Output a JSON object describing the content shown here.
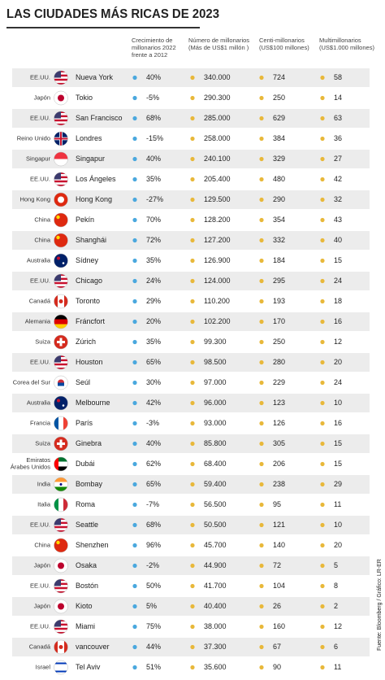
{
  "title": "LAS CIUDADES MÁS RICAS DE 2023",
  "source": "Fuente: Bloomberg / Gráfico: LR-ER",
  "headers": [
    [
      "Crecimiento de",
      "millonarios 2022",
      "frente a 2012"
    ],
    [
      "Número de millonarios",
      "(Más de US$1 millón )"
    ],
    [
      "Centi-millonarios",
      "(US$100 millones)"
    ],
    [
      "Multimillonarios",
      "(US$1.000 millones)"
    ]
  ],
  "rows": [
    {
      "country": "EE.UU.",
      "city": "Nueva York",
      "growth": "40%",
      "millionaires": "340.000",
      "centi": "724",
      "multi": "58"
    },
    {
      "country": "Japón",
      "city": "Tokio",
      "growth": "-5%",
      "millionaires": "290.300",
      "centi": "250",
      "multi": "14"
    },
    {
      "country": "EE.UU.",
      "city": "San Francisco",
      "growth": "68%",
      "millionaires": "285.000",
      "centi": "629",
      "multi": "63"
    },
    {
      "country": "Reino Unido",
      "city": "Londres",
      "growth": "-15%",
      "millionaires": "258.000",
      "centi": "384",
      "multi": "36"
    },
    {
      "country": "Singapur",
      "city": "Singapur",
      "growth": "40%",
      "millionaires": "240.100",
      "centi": "329",
      "multi": "27"
    },
    {
      "country": "EE.UU.",
      "city": "Los Ángeles",
      "growth": "35%",
      "millionaires": "205.400",
      "centi": "480",
      "multi": "42"
    },
    {
      "country": "Hong Kong",
      "city": "Hong Kong",
      "growth": "-27%",
      "millionaires": "129.500",
      "centi": "290",
      "multi": "32"
    },
    {
      "country": "China",
      "city": "Pekín",
      "growth": "70%",
      "millionaires": "128.200",
      "centi": "354",
      "multi": "43"
    },
    {
      "country": "China",
      "city": "Shanghái",
      "growth": "72%",
      "millionaires": "127.200",
      "centi": "332",
      "multi": "40"
    },
    {
      "country": "Australia",
      "city": "Sídney",
      "growth": "35%",
      "millionaires": "126.900",
      "centi": "184",
      "multi": "15"
    },
    {
      "country": "EE.UU.",
      "city": "Chicago",
      "growth": "24%",
      "millionaires": "124.000",
      "centi": "295",
      "multi": "24"
    },
    {
      "country": "Canadá",
      "city": "Toronto",
      "growth": "29%",
      "millionaires": "110.200",
      "centi": "193",
      "multi": "18"
    },
    {
      "country": "Alemania",
      "city": "Fráncfort",
      "growth": "20%",
      "millionaires": "102.200",
      "centi": "170",
      "multi": "16"
    },
    {
      "country": "Suiza",
      "city": "Zúrich",
      "growth": "35%",
      "millionaires": "99.300",
      "centi": "250",
      "multi": "12"
    },
    {
      "country": "EE.UU.",
      "city": "Houston",
      "growth": "65%",
      "millionaires": "98.500",
      "centi": "280",
      "multi": "20"
    },
    {
      "country": "Corea del Sur",
      "city": "Seúl",
      "growth": "30%",
      "millionaires": "97.000",
      "centi": "229",
      "multi": "24"
    },
    {
      "country": "Australia",
      "city": "Melbourne",
      "growth": "42%",
      "millionaires": "96.000",
      "centi": "123",
      "multi": "10"
    },
    {
      "country": "Francia",
      "city": "París",
      "growth": "-3%",
      "millionaires": "93.000",
      "centi": "126",
      "multi": "16"
    },
    {
      "country": "Suiza",
      "city": "Ginebra",
      "growth": "40%",
      "millionaires": "85.800",
      "centi": "305",
      "multi": "15"
    },
    {
      "country": [
        "Emiratos",
        "Árabes Unidos"
      ],
      "city": "Dubái",
      "growth": "62%",
      "millionaires": "68.400",
      "centi": "206",
      "multi": "15"
    },
    {
      "country": "India",
      "city": "Bombay",
      "growth": "65%",
      "millionaires": "59.400",
      "centi": "238",
      "multi": "29"
    },
    {
      "country": "Italia",
      "city": "Roma",
      "growth": "-7%",
      "millionaires": "56.500",
      "centi": "95",
      "multi": "11"
    },
    {
      "country": "EE.UU.",
      "city": "Seattle",
      "growth": "68%",
      "millionaires": "50.500",
      "centi": "121",
      "multi": "10"
    },
    {
      "country": "China",
      "city": "Shenzhen",
      "growth": "96%",
      "millionaires": "45.700",
      "centi": "140",
      "multi": "20"
    },
    {
      "country": "Japón",
      "city": "Osaka",
      "growth": "-2%",
      "millionaires": "44.900",
      "centi": "72",
      "multi": "5"
    },
    {
      "country": "EE.UU.",
      "city": "Bostón",
      "growth": "50%",
      "millionaires": "41.700",
      "centi": "104",
      "multi": "8"
    },
    {
      "country": "Japón",
      "city": "Kioto",
      "growth": "5%",
      "millionaires": "40.400",
      "centi": "26",
      "multi": "2"
    },
    {
      "country": "EE.UU.",
      "city": "Miami",
      "growth": "75%",
      "millionaires": "38.000",
      "centi": "160",
      "multi": "12"
    },
    {
      "country": "Canadá",
      "city": "vancouver",
      "growth": "44%",
      "millionaires": "37.300",
      "centi": "67",
      "multi": "6"
    },
    {
      "country": "Israel",
      "city": "Tel Aviv",
      "growth": "51%",
      "millionaires": "35.600",
      "centi": "90",
      "multi": "11"
    }
  ]
}
